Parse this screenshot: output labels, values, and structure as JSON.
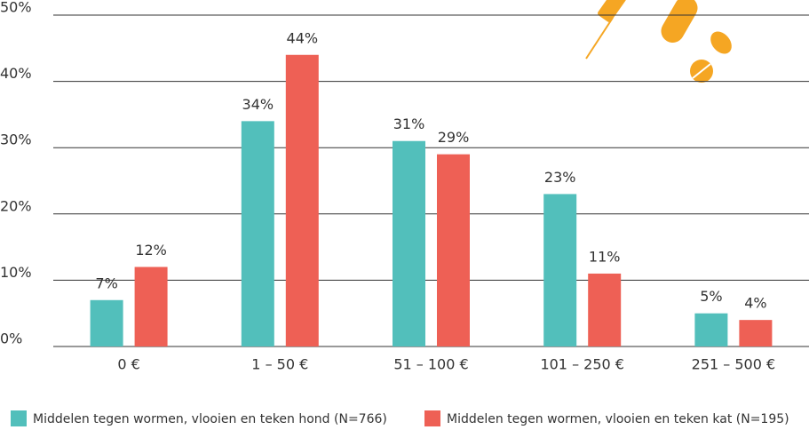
{
  "chart_data": {
    "type": "bar",
    "categories": [
      "0 €",
      "1 – 50 €",
      "51 – 100 €",
      "101 – 250 €",
      "251 – 500 €"
    ],
    "series": [
      {
        "name": "Middelen tegen wormen, vlooien en teken hond (N=766)",
        "color": "#52bfbb",
        "values": [
          7,
          34,
          31,
          23,
          5
        ],
        "value_labels": [
          "7%",
          "34%",
          "31%",
          "23%",
          "5%"
        ]
      },
      {
        "name": "Middelen tegen wormen, vlooien en teken kat (N=195)",
        "color": "#ee6055",
        "values": [
          12,
          44,
          29,
          11,
          4
        ],
        "value_labels": [
          "12%",
          "44%",
          "29%",
          "11%",
          "4%"
        ]
      }
    ],
    "ylim": [
      0,
      50
    ],
    "yticks": [
      {
        "value": 0,
        "label": "0%"
      },
      {
        "value": 10,
        "label": "10%"
      },
      {
        "value": 20,
        "label": "20%"
      },
      {
        "value": 30,
        "label": "30%"
      },
      {
        "value": 40,
        "label": "40%"
      },
      {
        "value": 50,
        "label": "50%"
      }
    ],
    "grid": true,
    "legend": "bottom"
  }
}
